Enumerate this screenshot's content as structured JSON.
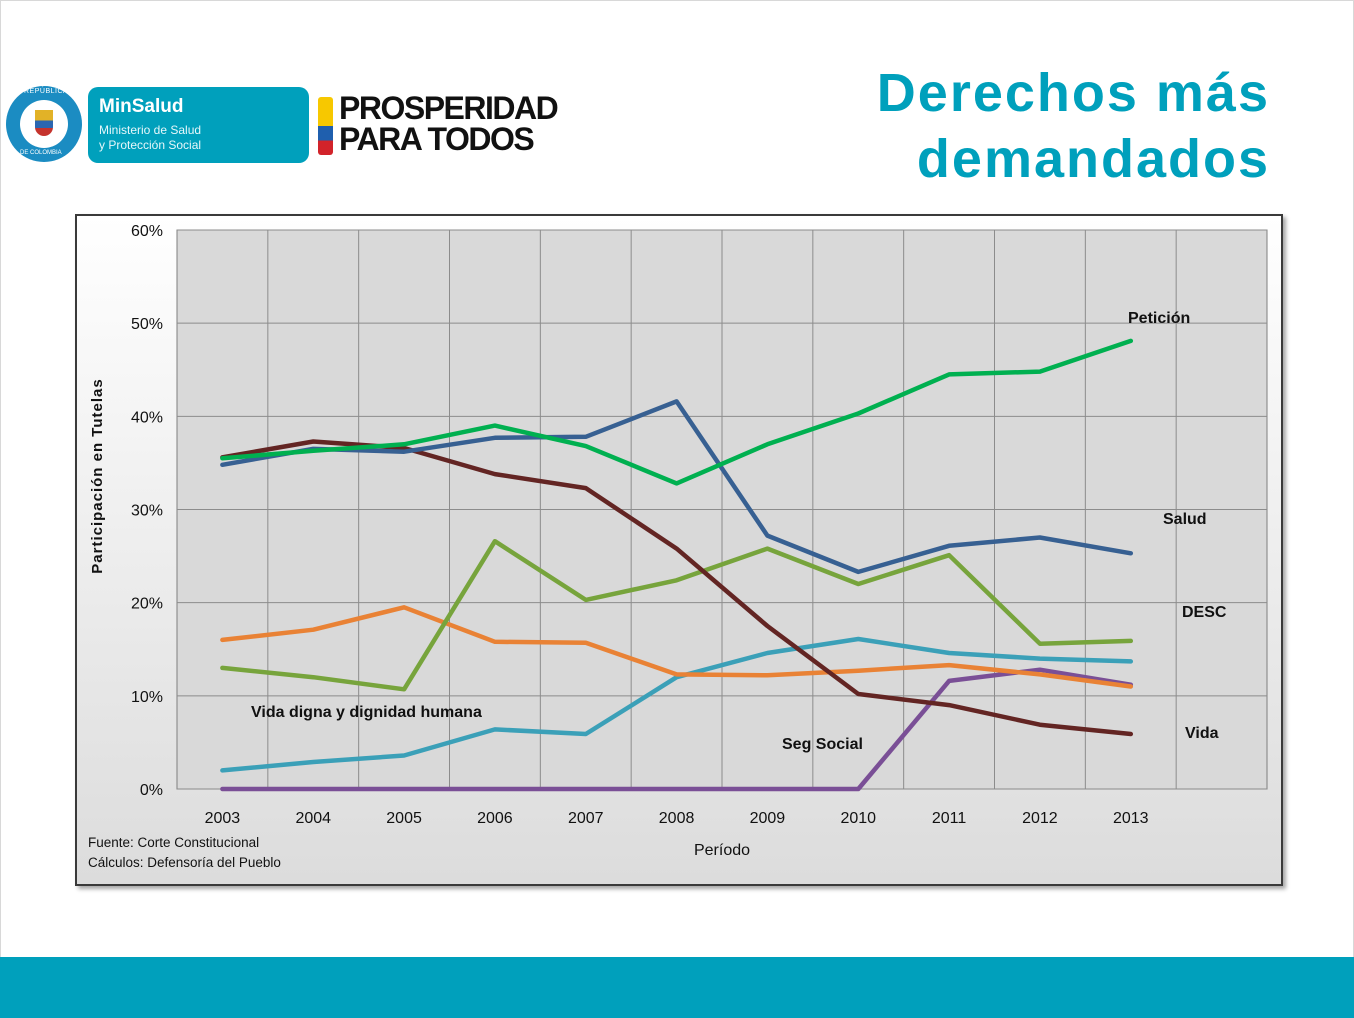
{
  "header": {
    "title_line1": "Derechos más",
    "title_line2": "demandados",
    "ministry_name": "MinSalud",
    "ministry_sub1": "Ministerio de Salud",
    "ministry_sub2": "y Protección Social",
    "slogan_line1": "PROSPERIDAD",
    "slogan_line2": "PARA TODOS",
    "seal_top": "REPÚBLICA",
    "seal_bottom": "DE COLOMBIA"
  },
  "colors": {
    "accent": "#00a0bc",
    "peticion": "#00b050",
    "salud": "#376092",
    "desc": "#77a43c",
    "vida": "#632523",
    "seg_social": "#3ba0b8",
    "vida_digna": "#e98235",
    "purple": "#7a4f96"
  },
  "chart_data": {
    "type": "line",
    "x": [
      "2003",
      "2004",
      "2005",
      "2006",
      "2007",
      "2008",
      "2009",
      "2010",
      "2011",
      "2012",
      "2013"
    ],
    "ylabel": "Participación en Tutelas",
    "xlabel": "Período",
    "ylim": [
      0,
      60
    ],
    "yticks": [
      "0%",
      "10%",
      "20%",
      "30%",
      "40%",
      "50%",
      "60%"
    ],
    "grid": true,
    "series": [
      {
        "name": "Petición",
        "color_key": "peticion",
        "values": [
          35.5,
          36.3,
          37.0,
          39.0,
          36.8,
          32.8,
          37.0,
          40.3,
          44.5,
          44.8,
          48.1
        ]
      },
      {
        "name": "Salud",
        "color_key": "salud",
        "values": [
          34.8,
          36.5,
          36.2,
          37.7,
          37.8,
          41.6,
          27.2,
          23.3,
          26.1,
          27.0,
          25.3
        ]
      },
      {
        "name": "DESC",
        "color_key": "desc",
        "values": [
          13.0,
          12.0,
          10.7,
          26.6,
          20.3,
          22.4,
          25.8,
          22.0,
          25.1,
          15.6,
          15.9
        ]
      },
      {
        "name": "Vida",
        "color_key": "vida",
        "values": [
          35.6,
          37.3,
          36.6,
          33.8,
          32.3,
          25.8,
          17.5,
          10.2,
          9.0,
          6.9,
          5.9
        ]
      },
      {
        "name": "Seg Social",
        "color_key": "seg_social",
        "values": [
          2.0,
          2.9,
          3.6,
          6.4,
          5.9,
          12.0,
          14.6,
          16.1,
          14.6,
          14.0,
          13.7
        ]
      },
      {
        "name": "Vida digna y dignidad humana",
        "color_key": "vida_digna",
        "values": [
          16.0,
          17.1,
          19.5,
          15.8,
          15.7,
          12.3,
          12.2,
          12.7,
          13.3,
          12.3,
          11.0
        ]
      },
      {
        "name": "",
        "color_key": "purple",
        "values": [
          0,
          0,
          0,
          0,
          0,
          0,
          0,
          0,
          11.6,
          12.8,
          11.2
        ]
      }
    ],
    "labels": [
      "Petición",
      "Salud",
      "DESC",
      "Vida",
      "Seg Social",
      "Vida digna y dignidad humana"
    ],
    "source_line1": "Fuente: Corte Constitucional",
    "source_line2": "Cálculos: Defensoría del Pueblo"
  }
}
